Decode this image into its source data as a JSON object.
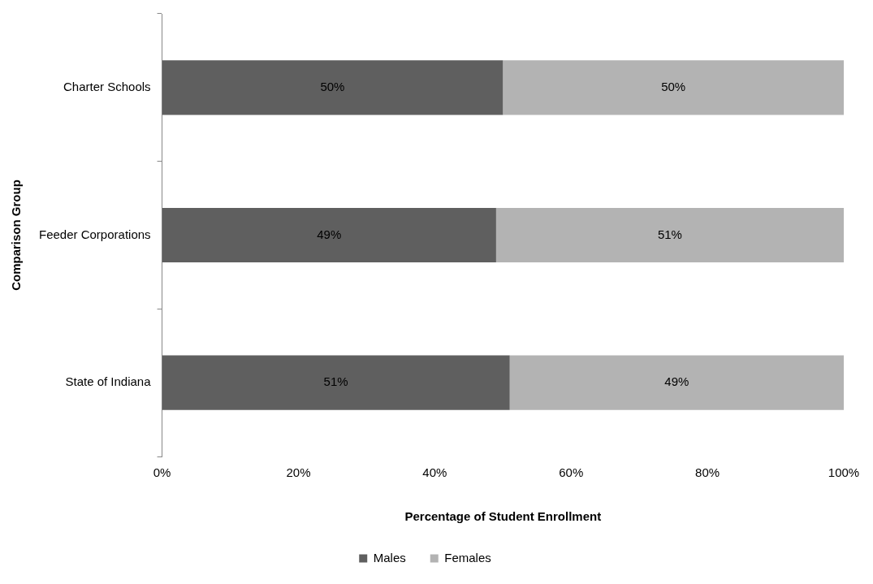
{
  "chart_data": {
    "type": "bar",
    "orientation": "horizontal",
    "stacked": true,
    "xlabel": "Percentage of Student Enrollment",
    "ylabel": "Comparison Group",
    "categories": [
      "Charter Schools",
      "Feeder Corporations",
      "State of Indiana"
    ],
    "series": [
      {
        "name": "Males",
        "color": "#5f5f5f",
        "values": [
          50,
          49,
          51
        ],
        "value_labels": [
          "50%",
          "49%",
          "51%"
        ]
      },
      {
        "name": "Females",
        "color": "#b3b3b3",
        "values": [
          50,
          51,
          49
        ],
        "value_labels": [
          "50%",
          "51%",
          "49%"
        ]
      }
    ],
    "xlim": [
      0,
      100
    ],
    "xticks": [
      {
        "value": 0,
        "label": "0%"
      },
      {
        "value": 20,
        "label": "20%"
      },
      {
        "value": 40,
        "label": "40%"
      },
      {
        "value": 60,
        "label": "60%"
      },
      {
        "value": 80,
        "label": "80%"
      },
      {
        "value": 100,
        "label": "100%"
      }
    ],
    "grid": false,
    "legend": "bottom"
  }
}
